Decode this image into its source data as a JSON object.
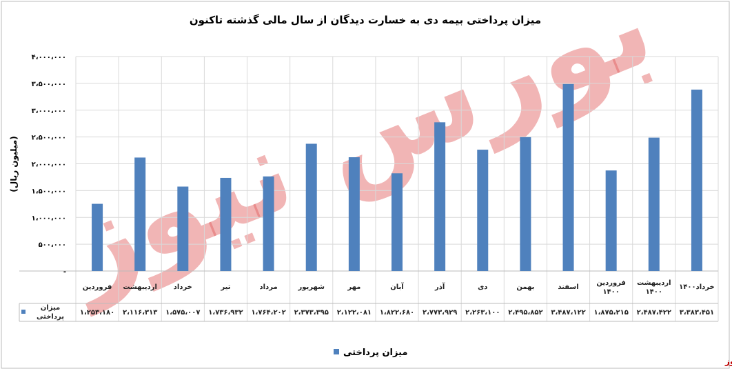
{
  "chart_data": {
    "type": "bar",
    "title": "میزان پرداختی بیمه دی به خسارت دیدگان از سال مالی گذشته تاکنون",
    "y_label": "(میلیون ریال)",
    "categories": [
      "فروردین",
      "اردیبهشت",
      "خرداد",
      "تیر",
      "مرداد",
      "شهریور",
      "مهر",
      "آبان",
      "آذر",
      "دی",
      "بهمن",
      "اسفند",
      "فروردین ۱۴۰۰",
      "اردیبهشت ۱۴۰۰",
      "خرداد۱۴۰۰"
    ],
    "series": [
      {
        "name": "میزان پرداختی",
        "color": "#4f81bd",
        "values": [
          1253180,
          2116313,
          1575007,
          1736932,
          1764202,
          2373395,
          2122081,
          1822680,
          2773929,
          2263100,
          2495852,
          3487122,
          1875215,
          2487422,
          3383451
        ],
        "value_labels": [
          "۱،۲۵۳،۱۸۰",
          "۲،۱۱۶،۳۱۳",
          "۱،۵۷۵،۰۰۷",
          "۱،۷۳۶،۹۳۲",
          "۱،۷۶۴،۲۰۲",
          "۲،۳۷۳،۳۹۵",
          "۲،۱۲۲،۰۸۱",
          "۱،۸۲۲،۶۸۰",
          "۲،۷۷۳،۹۲۹",
          "۲،۲۶۳،۱۰۰",
          "۲،۴۹۵،۸۵۲",
          "۳،۴۸۷،۱۲۲",
          "۱،۸۷۵،۲۱۵",
          "۲،۴۸۷،۴۲۲",
          "۳،۳۸۳،۴۵۱"
        ]
      }
    ],
    "ylim": [
      0,
      4000000
    ],
    "yticks": [
      {
        "value": 0,
        "label": "-"
      },
      {
        "value": 500000,
        "label": "۵۰۰،۰۰۰"
      },
      {
        "value": 1000000,
        "label": "۱،۰۰۰،۰۰۰"
      },
      {
        "value": 1500000,
        "label": "۱،۵۰۰،۰۰۰"
      },
      {
        "value": 2000000,
        "label": "۲،۰۰۰،۰۰۰"
      },
      {
        "value": 2500000,
        "label": "۲،۵۰۰،۰۰۰"
      },
      {
        "value": 3000000,
        "label": "۳،۰۰۰،۰۰۰"
      },
      {
        "value": 3500000,
        "label": "۳،۵۰۰،۰۰۰"
      },
      {
        "value": 4000000,
        "label": "۴،۰۰۰،۰۰۰"
      }
    ],
    "grid": true,
    "legend": "bottom",
    "watermark": "بورس نیوز",
    "source": "بورس نیوز"
  }
}
